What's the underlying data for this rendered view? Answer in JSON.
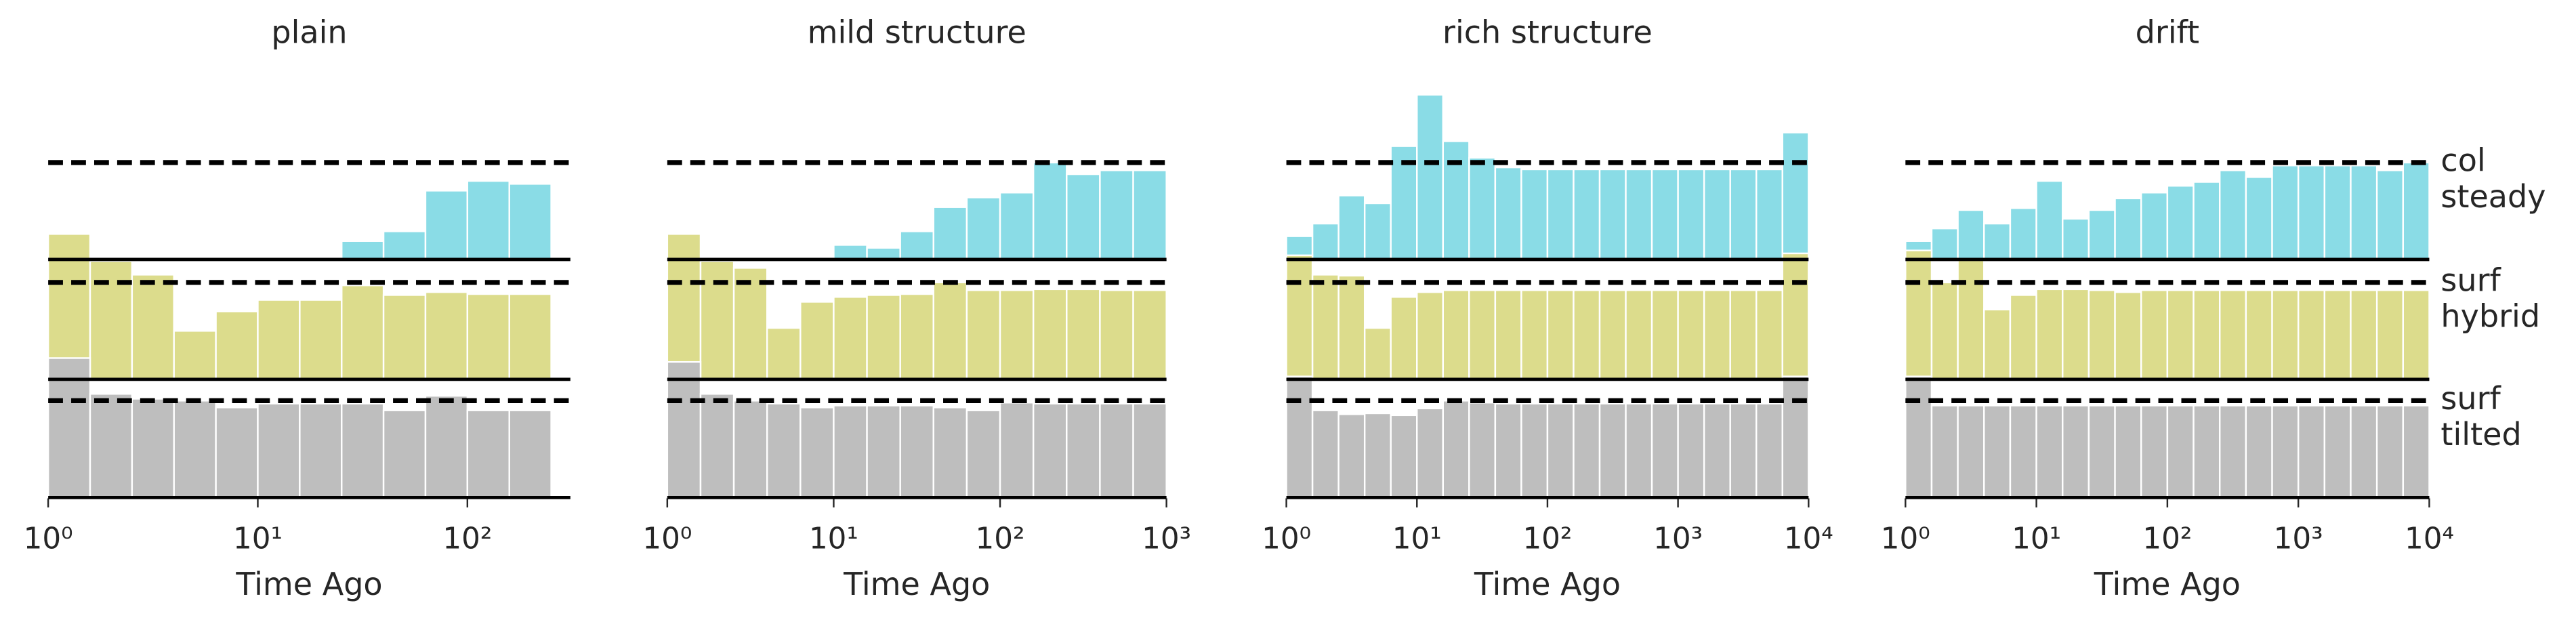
{
  "chart_data": [
    {
      "type": "histogram",
      "title": "plain",
      "xlabel": "Time Ago",
      "log_x": true,
      "reference": 1,
      "xlim": [
        1,
        310
      ],
      "xticks": [
        {
          "value": 1,
          "label": "10⁰"
        },
        {
          "value": 10,
          "label": "10¹"
        },
        {
          "value": 100,
          "label": "10²"
        }
      ],
      "bins": [
        1,
        1.585,
        2.512,
        3.981,
        6.31,
        10,
        15.85,
        25.12,
        39.81,
        63.1,
        100,
        158.5,
        251.2
      ],
      "series": [
        {
          "name": "steady",
          "group": "col",
          "color": "#8adce6",
          "values": [
            0,
            0,
            0,
            0,
            0,
            0.02,
            0.02,
            0.19,
            0.29,
            0.71,
            0.81,
            0.78
          ]
        },
        {
          "name": "hybrid",
          "group": "surf",
          "color": "#dcdc8c",
          "values": [
            1.5,
            1.22,
            1.08,
            0.5,
            0.7,
            0.82,
            0.82,
            0.97,
            0.87,
            0.9,
            0.88,
            0.88
          ]
        },
        {
          "name": "tilted",
          "group": "surf",
          "color": "#bebebe",
          "values": [
            1.44,
            1.07,
            1.02,
            1.0,
            0.93,
            0.97,
            0.97,
            0.97,
            0.9,
            1.05,
            0.9,
            0.9
          ]
        }
      ]
    },
    {
      "type": "histogram",
      "title": "mild structure",
      "xlabel": "Time Ago",
      "log_x": true,
      "reference": 1,
      "xlim": [
        1,
        1000
      ],
      "xticks": [
        {
          "value": 1,
          "label": "10⁰"
        },
        {
          "value": 10,
          "label": "10¹"
        },
        {
          "value": 100,
          "label": "10²"
        },
        {
          "value": 1000,
          "label": "10³"
        }
      ],
      "bins": [
        1,
        1.585,
        2.512,
        3.981,
        6.31,
        10,
        15.85,
        25.12,
        39.81,
        63.1,
        100,
        158.5,
        251.2,
        398.1,
        631,
        1000
      ],
      "series": [
        {
          "name": "steady",
          "group": "col",
          "color": "#8adce6",
          "values": [
            0,
            0,
            0,
            0,
            0,
            0.15,
            0.12,
            0.29,
            0.54,
            0.64,
            0.69,
            1.0,
            0.88,
            0.92,
            0.92
          ]
        },
        {
          "name": "hybrid",
          "group": "surf",
          "color": "#dcdc8c",
          "values": [
            1.5,
            1.22,
            1.15,
            0.53,
            0.8,
            0.85,
            0.87,
            0.88,
            1.0,
            0.92,
            0.92,
            0.93,
            0.93,
            0.92,
            0.92
          ]
        },
        {
          "name": "tilted",
          "group": "surf",
          "color": "#bebebe",
          "values": [
            1.4,
            1.07,
            1.0,
            0.97,
            0.93,
            0.95,
            0.95,
            0.95,
            0.93,
            0.9,
            0.98,
            0.97,
            0.97,
            0.97,
            0.97
          ]
        }
      ]
    },
    {
      "type": "histogram",
      "title": "rich structure",
      "xlabel": "Time Ago",
      "log_x": true,
      "reference": 1,
      "xlim": [
        1,
        10000
      ],
      "xticks": [
        {
          "value": 1,
          "label": "10⁰"
        },
        {
          "value": 10,
          "label": "10¹"
        },
        {
          "value": 100,
          "label": "10²"
        },
        {
          "value": 1000,
          "label": "10³"
        },
        {
          "value": 10000,
          "label": "10⁴"
        }
      ],
      "bins": [
        1,
        1.585,
        2.512,
        3.981,
        6.31,
        10,
        15.85,
        25.12,
        39.81,
        63.1,
        100,
        158.5,
        251.2,
        398.1,
        631,
        1000,
        1585,
        2512,
        3981,
        6310,
        10000
      ],
      "series": [
        {
          "name": "steady",
          "group": "col",
          "color": "#8adce6",
          "values": [
            0.24,
            0.37,
            0.66,
            0.58,
            1.17,
            1.7,
            1.22,
            1.05,
            0.95,
            0.93,
            0.93,
            0.93,
            0.93,
            0.93,
            0.93,
            0.93,
            0.93,
            0.93,
            0.93,
            1.31
          ]
        },
        {
          "name": "hybrid",
          "group": "surf",
          "color": "#dcdc8c",
          "values": [
            1.28,
            1.08,
            1.07,
            0.53,
            0.85,
            0.9,
            0.92,
            0.92,
            0.92,
            0.92,
            0.92,
            0.92,
            0.92,
            0.92,
            0.92,
            0.92,
            0.92,
            0.92,
            0.92,
            1.3
          ]
        },
        {
          "name": "tilted",
          "group": "surf",
          "color": "#bebebe",
          "values": [
            1.25,
            0.9,
            0.86,
            0.87,
            0.85,
            0.92,
            1.0,
            0.98,
            0.97,
            0.97,
            0.97,
            0.97,
            0.97,
            0.97,
            0.97,
            0.97,
            0.97,
            0.97,
            0.97,
            1.25
          ]
        }
      ]
    },
    {
      "type": "histogram",
      "title": "drift",
      "xlabel": "Time Ago",
      "log_x": true,
      "reference": 1,
      "xlim": [
        1,
        10000
      ],
      "xticks": [
        {
          "value": 1,
          "label": "10⁰"
        },
        {
          "value": 10,
          "label": "10¹"
        },
        {
          "value": 100,
          "label": "10²"
        },
        {
          "value": 1000,
          "label": "10³"
        },
        {
          "value": 10000,
          "label": "10⁴"
        }
      ],
      "bins": [
        1,
        1.585,
        2.512,
        3.981,
        6.31,
        10,
        15.85,
        25.12,
        39.81,
        63.1,
        100,
        158.5,
        251.2,
        398.1,
        631,
        1000,
        1585,
        2512,
        3981,
        6310,
        10000
      ],
      "series": [
        {
          "name": "steady",
          "group": "col",
          "color": "#8adce6",
          "values": [
            0.19,
            0.32,
            0.51,
            0.37,
            0.53,
            0.81,
            0.42,
            0.51,
            0.63,
            0.69,
            0.76,
            0.8,
            0.92,
            0.85,
            0.97,
            0.97,
            0.97,
            0.97,
            0.92,
            1.0
          ]
        },
        {
          "name": "hybrid",
          "group": "surf",
          "color": "#dcdc8c",
          "values": [
            1.33,
            1.0,
            1.23,
            0.72,
            0.87,
            0.93,
            0.93,
            0.92,
            0.9,
            0.92,
            0.92,
            0.92,
            0.92,
            0.92,
            0.92,
            0.92,
            0.92,
            0.92,
            0.92,
            0.92
          ]
        },
        {
          "name": "tilted",
          "group": "surf",
          "color": "#bebebe",
          "values": [
            1.25,
            0.95,
            0.95,
            0.95,
            0.95,
            0.95,
            0.95,
            0.95,
            0.95,
            0.95,
            0.95,
            0.95,
            0.95,
            0.95,
            0.95,
            0.95,
            0.95,
            0.95,
            0.95,
            0.95
          ]
        }
      ]
    }
  ]
}
